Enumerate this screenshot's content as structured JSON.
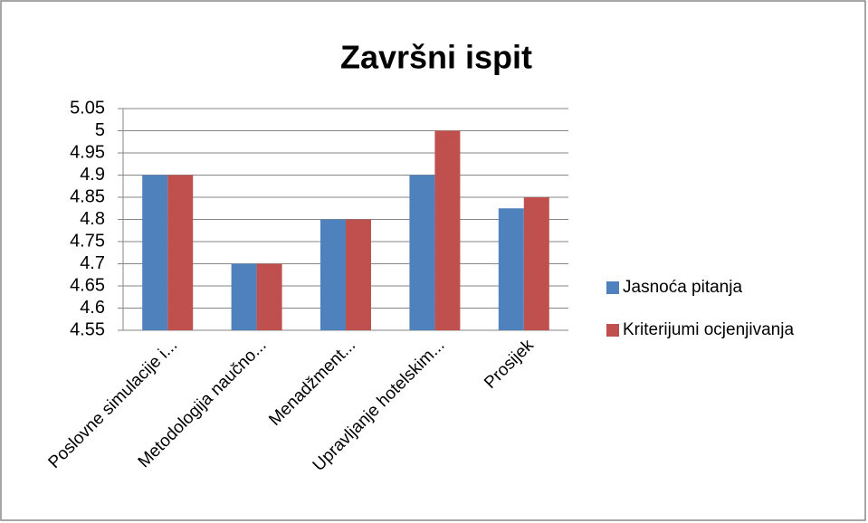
{
  "chart_data": {
    "type": "bar",
    "title": "Završni ispit",
    "categories": [
      "Poslovne simulacije i...",
      "Metodologija naučno...",
      "Menadžment...",
      "Upravljanje hotelskim...",
      "Prosijek"
    ],
    "series": [
      {
        "name": "Jasnoća pitanja",
        "color": "#4f81bd",
        "values": [
          4.9,
          4.7,
          4.8,
          4.9,
          4.825
        ]
      },
      {
        "name": "Kriterijumi ocjenjivanja",
        "color": "#c0504d",
        "values": [
          4.9,
          4.7,
          4.8,
          5.0,
          4.85
        ]
      }
    ],
    "ylim": [
      4.55,
      5.05
    ],
    "yticks": [
      4.55,
      4.6,
      4.65,
      4.7,
      4.75,
      4.8,
      4.85,
      4.9,
      4.95,
      5,
      5.05
    ],
    "grid": true,
    "legend": "right"
  }
}
